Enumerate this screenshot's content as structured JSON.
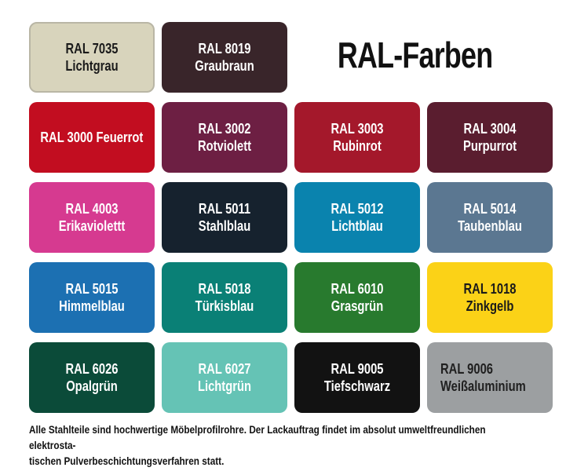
{
  "title": "RAL-Farben",
  "footer": {
    "text": "Alle Stahlteile sind hochwertige Möbelprofilrohre. Der Lackauftrag findet im absolut umweltfreundlichen elektrosta-\ntischen Pulverbeschichtungsverfahren statt."
  },
  "palette": {
    "background": "#ffffff",
    "title_color": "#111111",
    "footer_color": "#111111"
  },
  "swatches": [
    {
      "code": "RAL 7035",
      "name": "Lichtgrau",
      "label": "RAL 7035 Lichtgrau",
      "color": "#d8d4bc",
      "text_color": "#1a1a1a",
      "border": "#b9b6a5"
    },
    {
      "code": "RAL 8019",
      "name": "Graubraun",
      "label": "RAL 8019 Graubraun",
      "color": "#39252a",
      "text_color": "#ffffff"
    },
    {
      "code": "RAL 3000",
      "name": "Feuerrot",
      "label": "RAL 3000 Feuerrot",
      "color": "#c20d20",
      "text_color": "#ffffff"
    },
    {
      "code": "RAL 3002",
      "name": "Rotviolett",
      "label": "RAL 3002 Rotviolett",
      "color": "#6d1f43",
      "text_color": "#ffffff"
    },
    {
      "code": "RAL 3003",
      "name": "Rubinrot",
      "label": "RAL 3003 Rubinrot",
      "color": "#a4182b",
      "text_color": "#ffffff"
    },
    {
      "code": "RAL 3004",
      "name": "Purpurrot",
      "label": "RAL 3004 Purpurrot",
      "color": "#5a1d2f",
      "text_color": "#ffffff"
    },
    {
      "code": "RAL 4003",
      "name": "Erikaviolettt",
      "label": "RAL 4003 Erikaviolettt",
      "color": "#d63a90",
      "text_color": "#ffffff"
    },
    {
      "code": "RAL 5011",
      "name": "Stahlblau",
      "label": "RAL 5011 Stahlblau",
      "color": "#16222e",
      "text_color": "#ffffff"
    },
    {
      "code": "RAL 5012",
      "name": "Lichtblau",
      "label": "RAL 5012 Lichtblau",
      "color": "#0a83ae",
      "text_color": "#ffffff"
    },
    {
      "code": "RAL 5014",
      "name": "Taubenblau",
      "label": "RAL 5014 Taubenblau",
      "color": "#5b7791",
      "text_color": "#ffffff"
    },
    {
      "code": "RAL 5015",
      "name": "Himmelblau",
      "label": "RAL 5015 Himmelblau",
      "color": "#1c70b2",
      "text_color": "#ffffff"
    },
    {
      "code": "RAL 5018",
      "name": "Türkisblau",
      "label": "RAL 5018 Türkisblau",
      "color": "#0a8076",
      "text_color": "#ffffff"
    },
    {
      "code": "RAL 6010",
      "name": "Grasgrün",
      "label": "RAL 6010 Grasgrün",
      "color": "#287a2e",
      "text_color": "#ffffff"
    },
    {
      "code": "RAL 1018",
      "name": "Zinkgelb",
      "label": "RAL 1018 Zinkgelb",
      "color": "#fbd217",
      "text_color": "#1a1a1a"
    },
    {
      "code": "RAL 6026",
      "name": "Opalgrün",
      "label": "RAL 6026 Opalgrün",
      "color": "#0b4b39",
      "text_color": "#ffffff"
    },
    {
      "code": "RAL 6027",
      "name": "Lichtgrün",
      "label": "RAL 6027 Lichtgrün",
      "color": "#65c3b5",
      "text_color": "#ffffff"
    },
    {
      "code": "RAL 9005",
      "name": "Tiefschwarz",
      "label": "RAL 9005 Tiefschwarz",
      "color": "#121212",
      "text_color": "#ffffff"
    },
    {
      "code": "RAL 9006",
      "name": "Weißaluminium",
      "label": "RAL 9006\nWeißaluminium",
      "color": "#9c9fa1",
      "text_color": "#202020",
      "align": "left"
    }
  ]
}
